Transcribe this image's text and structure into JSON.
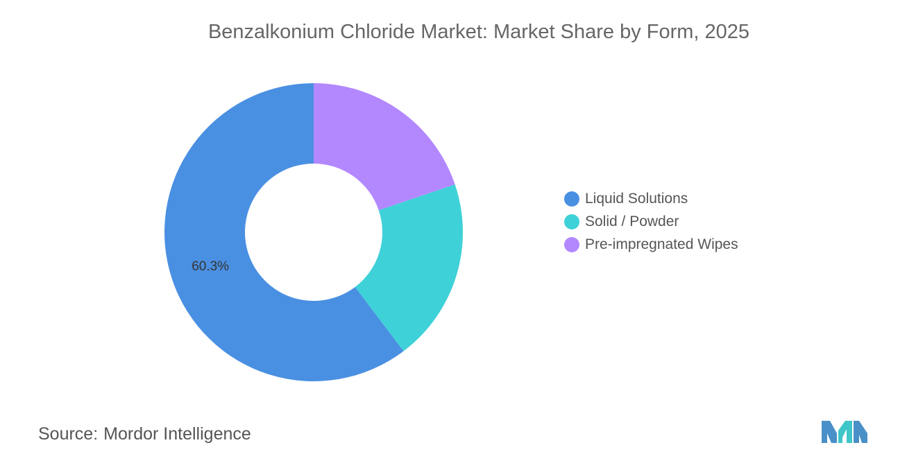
{
  "chart_data": {
    "type": "donut",
    "title": "Benzalkonium Chloride Market: Market Share by Form, 2025",
    "categories": [
      "Liquid Solutions",
      "Solid / Powder",
      "Pre-impregnated Wipes"
    ],
    "values": [
      60.3,
      19.9,
      19.8
    ],
    "labels_shown": [
      "60.3%",
      "",
      ""
    ],
    "colors": [
      "#4A90E2",
      "#3FD1D8",
      "#B388FF"
    ],
    "legend_position": "right"
  },
  "source": {
    "prefix": "Source:",
    "name": "Mordor Intelligence"
  },
  "logo": {
    "icon": "mordor-intelligence-logo-icon",
    "colors": [
      "#4A90C8",
      "#3FC6C9"
    ]
  }
}
